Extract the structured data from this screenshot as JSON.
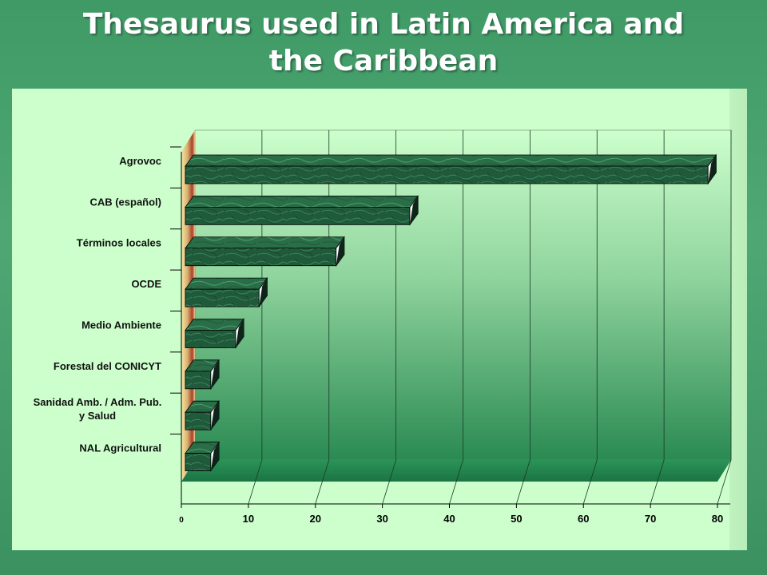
{
  "title_line1": "Thesaurus used in Latin America and",
  "title_line2": "the Caribbean",
  "chart_data": {
    "type": "bar",
    "orientation": "horizontal",
    "style": "3d",
    "title": "Thesaurus used in Latin America and the Caribbean",
    "categories": [
      "Agrovoc",
      "CAB (español)",
      "Términos locales",
      "OCDE",
      "Medio Ambiente",
      "Forestal del CONICYT",
      "Sanidad Amb. / Adm. Pub. y Salud",
      "NAL Agricultural"
    ],
    "category_display": [
      [
        "Agrovoc"
      ],
      [
        "CAB (español)"
      ],
      [
        "Términos locales"
      ],
      [
        "OCDE"
      ],
      [
        "Medio Ambiente"
      ],
      [
        "Forestal del CONICYT"
      ],
      [
        "Sanidad Amb. / Adm. Pub.",
        "y Salud"
      ],
      [
        "NAL Agricultural"
      ]
    ],
    "values": [
      78,
      33.5,
      22.5,
      11,
      7.5,
      3.8,
      3.8,
      3.8
    ],
    "xlim": [
      0,
      80
    ],
    "xticks": [
      0,
      10,
      20,
      30,
      40,
      50,
      60,
      70,
      80
    ],
    "xlabel": "",
    "ylabel": "",
    "grid": true,
    "colors": {
      "bar": "#1f5a3a",
      "bar_top": "#2f7a52",
      "bar_side": "#123a25",
      "back_wall_top": "#ccffcc",
      "back_wall_bottom": "#2a8a52",
      "floor": "#1f7f4a",
      "left_wall": "#c8a060"
    }
  }
}
